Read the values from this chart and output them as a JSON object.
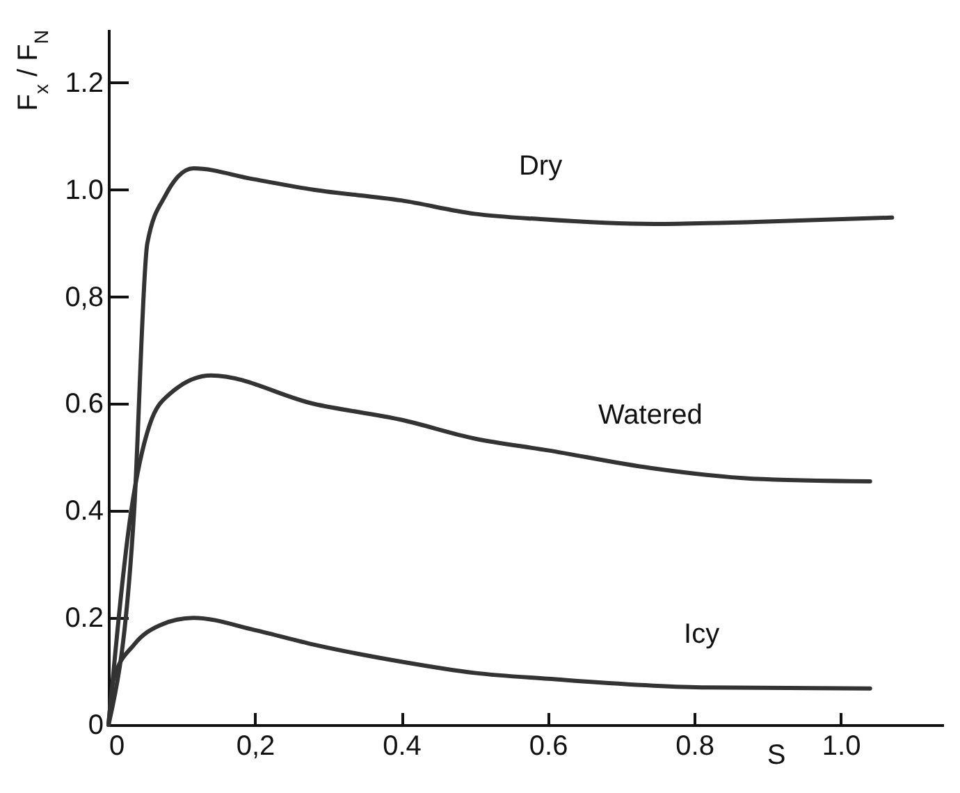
{
  "chart_data": {
    "type": "line",
    "xlabel": "S",
    "ylabel": "F$_{x}$ / F$_{N}$",
    "xlim": [
      0,
      1.14
    ],
    "ylim": [
      0,
      1.3
    ],
    "xticks": [
      0,
      {
        "value": 0.2,
        "label": "0,2"
      },
      0.4,
      0.6,
      0.8,
      {
        "value": 1,
        "label": "1.0"
      }
    ],
    "yticks": [
      0,
      0.2,
      0.4,
      0.6,
      {
        "value": 0.8,
        "label": "0,8"
      },
      {
        "value": 1,
        "label": "1.0"
      },
      1.2
    ],
    "grid": false,
    "marker": "none",
    "line_style": "solid",
    "series": [
      {
        "name": "Dry",
        "color": "#333333",
        "x": [
          0,
          0.035,
          0.053,
          0.078,
          0.116,
          0.197,
          0.28,
          0.4,
          0.5,
          0.59,
          0.745,
          0.885,
          1.07
        ],
        "values": [
          0,
          0.4,
          0.9,
          0.99,
          1.04,
          1.02,
          1.0,
          0.98,
          0.955,
          0.945,
          0.936,
          0.94,
          0.948
        ]
      },
      {
        "name": "Watered",
        "color": "#333333",
        "x": [
          0,
          0.031,
          0.056,
          0.085,
          0.14,
          0.28,
          0.4,
          0.5,
          0.6,
          0.74,
          0.88,
          1.04
        ],
        "values": [
          0,
          0.4,
          0.56,
          0.62,
          0.653,
          0.6,
          0.57,
          0.535,
          0.513,
          0.48,
          0.46,
          0.455
        ]
      },
      {
        "name": "Icy",
        "color": "#333333",
        "x": [
          0,
          0.007,
          0.035,
          0.07,
          0.116,
          0.2,
          0.28,
          0.4,
          0.5,
          0.6,
          0.81,
          1.04
        ],
        "values": [
          0,
          0.086,
          0.15,
          0.186,
          0.2,
          0.177,
          0.15,
          0.118,
          0.097,
          0.086,
          0.07,
          0.068
        ]
      }
    ]
  }
}
